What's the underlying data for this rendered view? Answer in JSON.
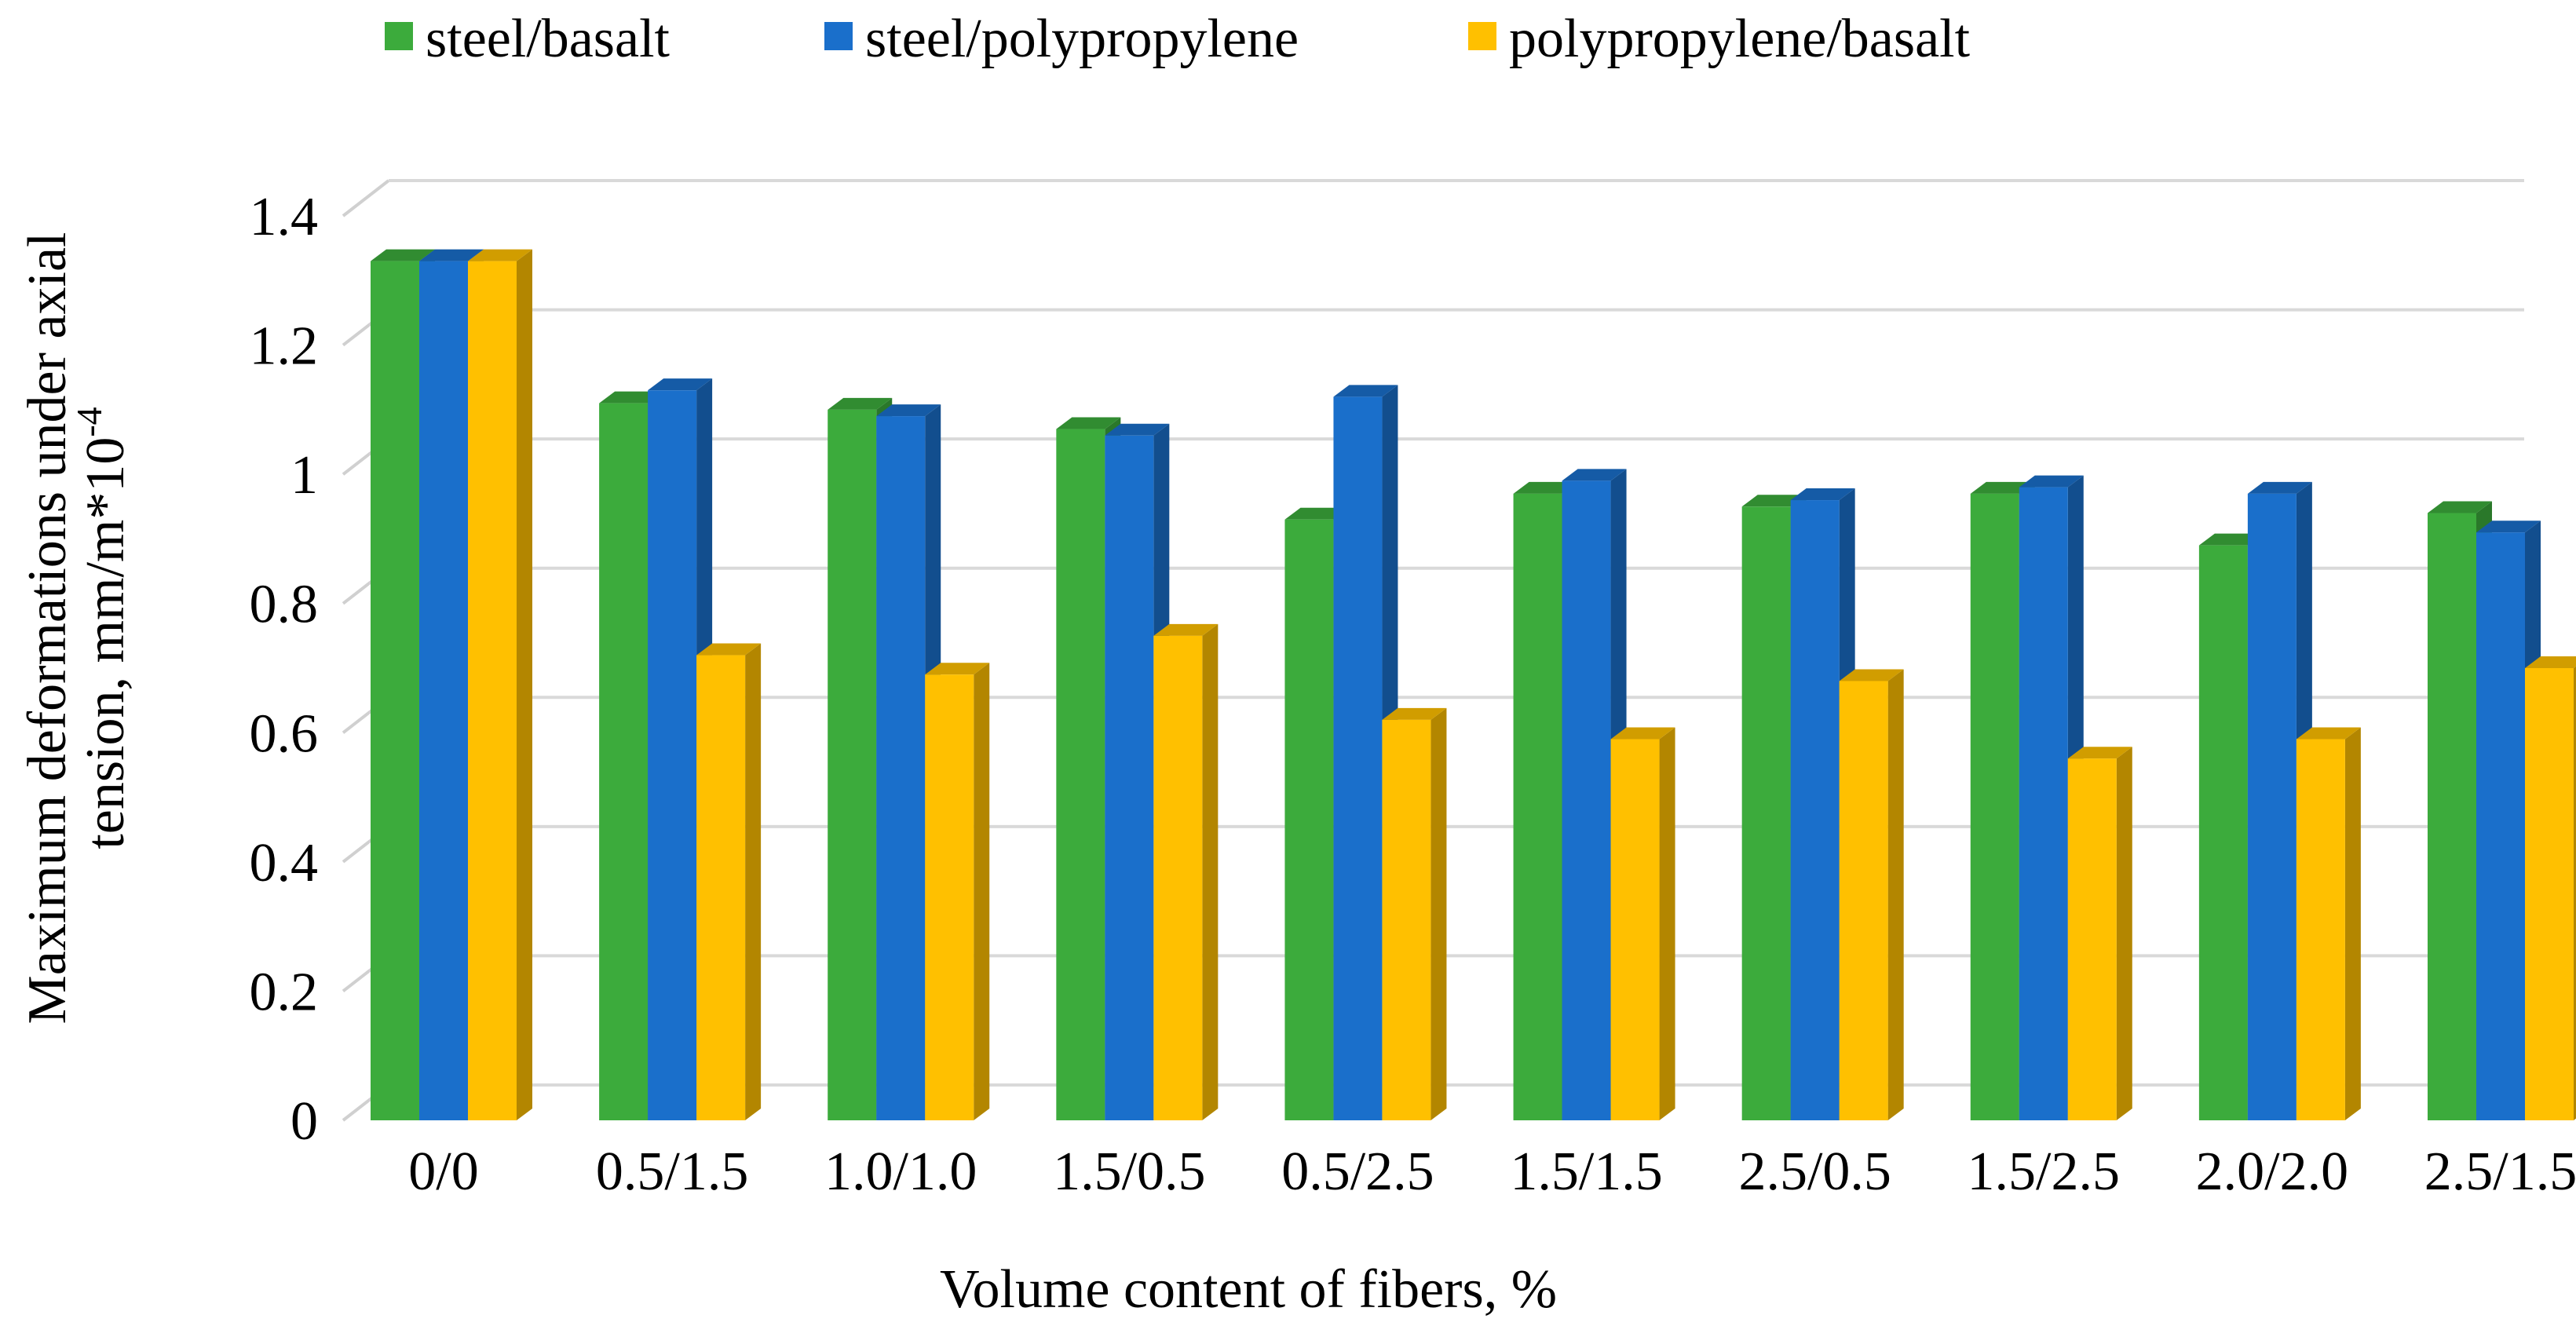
{
  "chart_data": {
    "type": "bar",
    "style": "3d-clustered-column",
    "title": "",
    "categories": [
      "0/0",
      "0.5/1.5",
      "1.0/1.0",
      "1.5/0.5",
      "0.5/2.5",
      "1.5/1.5",
      "2.5/0.5",
      "1.5/2.5",
      "2.0/2.0",
      "2.5/1.5"
    ],
    "series": [
      {
        "name": "steel/basalt",
        "color": "#3cab3c",
        "values": [
          1.33,
          1.11,
          1.1,
          1.07,
          0.93,
          0.97,
          0.95,
          0.97,
          0.89,
          0.94
        ]
      },
      {
        "name": "steel/polypropylene",
        "color": "#1a6fcb",
        "values": [
          1.33,
          1.13,
          1.09,
          1.06,
          1.12,
          0.99,
          0.96,
          0.98,
          0.97,
          0.91
        ]
      },
      {
        "name": "polypropylene/basalt",
        "color": "#ffc000",
        "values": [
          1.33,
          0.72,
          0.69,
          0.75,
          0.62,
          0.59,
          0.68,
          0.56,
          0.59,
          0.7
        ]
      }
    ],
    "xlabel": "Volume content of fibers,  %",
    "ylabel_line1": "Maximum deformations under axial",
    "ylabel_line2_prefix": "tension, mm/m*10",
    "ylabel_line2_sup": "-4",
    "ylim": [
      0,
      1.4
    ],
    "yticks": [
      0,
      0.2,
      0.4,
      0.6,
      0.8,
      1.0,
      1.2,
      1.4
    ],
    "ytick_labels": [
      "0",
      "0.2",
      "0.4",
      "0.6",
      "0.8",
      "1",
      "1.2",
      "1.4"
    ],
    "grid": true,
    "legend_position": "top-center"
  }
}
